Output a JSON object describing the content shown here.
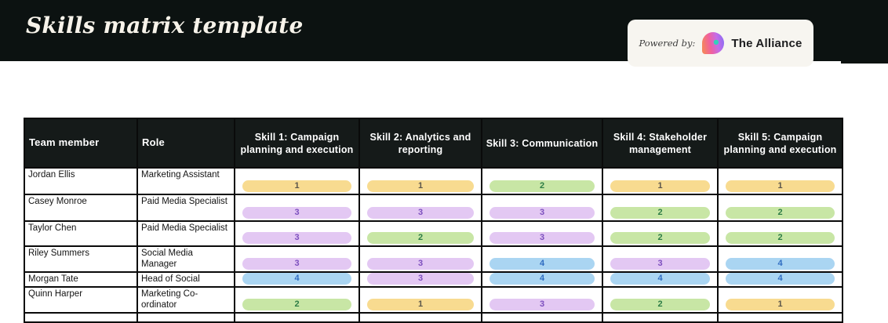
{
  "header": {
    "title": "Skills matrix template",
    "powered_by": {
      "label": "Powered by:",
      "brand": "The Alliance"
    }
  },
  "table": {
    "columns": [
      {
        "label": "Team member"
      },
      {
        "label": "Role"
      },
      {
        "label": "Skill 1: Campaign planning and execution"
      },
      {
        "label": "Skill 2: Analytics and reporting"
      },
      {
        "label": "Skill 3: Communication"
      },
      {
        "label": "Skill 4: Stakeholder management"
      },
      {
        "label": "Skill 5: Campaign planning and execution"
      }
    ],
    "rows": [
      {
        "name": "Jordan Ellis",
        "role": "Marketing Assistant",
        "skills": [
          "1",
          "1",
          "2",
          "1",
          "1"
        ]
      },
      {
        "name": "Casey Monroe",
        "role": "Paid Media Specialist",
        "skills": [
          "3",
          "3",
          "3",
          "2",
          "2"
        ]
      },
      {
        "name": "Taylor Chen",
        "role": "Paid Media Specialist",
        "skills": [
          "3",
          "2",
          "3",
          "2",
          "2"
        ]
      },
      {
        "name": "Riley Summers",
        "role": "Social Media Manager",
        "skills": [
          "3",
          "3",
          "4",
          "3",
          "4"
        ]
      },
      {
        "name": "Morgan Tate",
        "role": "Head of Social",
        "skills": [
          "4",
          "3",
          "4",
          "4",
          "4"
        ]
      },
      {
        "name": "Quinn Harper",
        "role": "Marketing Co-ordinator",
        "skills": [
          "2",
          "1",
          "3",
          "2",
          "1"
        ]
      }
    ],
    "level_colors": {
      "1": {
        "bg": "#F8DB90",
        "text": "#5B564B"
      },
      "2": {
        "bg": "#C8E6A5",
        "text": "#2E7D46"
      },
      "3": {
        "bg": "#E3C8F3",
        "text": "#7C4FBE"
      },
      "4": {
        "bg": "#AAD5F2",
        "text": "#2F6CC1"
      }
    }
  },
  "colors": {
    "topbar_bg": "#0c1211",
    "table_header_bg": "#151a19",
    "badge_bg": "#f7f5f0",
    "title_text": "#f7f3ea"
  }
}
